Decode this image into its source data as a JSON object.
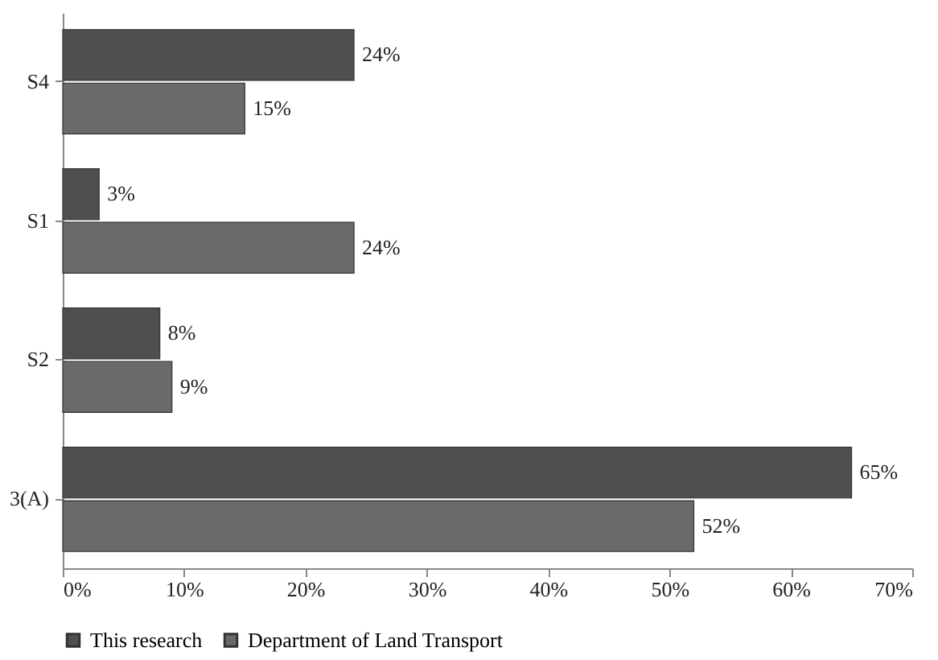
{
  "chart_data": {
    "type": "bar",
    "orientation": "horizontal",
    "categories": [
      "S4",
      "S1",
      "S2",
      "3(A)"
    ],
    "series": [
      {
        "name": "This research",
        "color": "#4f4f4f",
        "values": [
          24,
          3,
          8,
          65
        ],
        "value_labels": [
          "24%",
          "3%",
          "8%",
          "65%"
        ]
      },
      {
        "name": "Department of Land Transport",
        "color": "#6a6a6a",
        "values": [
          15,
          24,
          9,
          52
        ],
        "value_labels": [
          "15%",
          "24%",
          "9%",
          "52%"
        ]
      }
    ],
    "xlim": [
      0,
      70
    ],
    "xticks": [
      {
        "value": 0,
        "label": "0%"
      },
      {
        "value": 10,
        "label": "10%"
      },
      {
        "value": 20,
        "label": "20%"
      },
      {
        "value": 30,
        "label": "30%"
      },
      {
        "value": 40,
        "label": "40%"
      },
      {
        "value": 50,
        "label": "50%"
      },
      {
        "value": 60,
        "label": "60%"
      },
      {
        "value": 70,
        "label": "70%"
      }
    ],
    "grid": false,
    "legend": "bottom"
  }
}
